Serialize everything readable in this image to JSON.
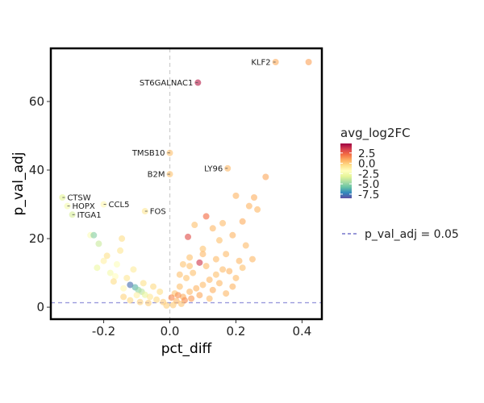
{
  "chart_data": {
    "type": "scatter",
    "xlabel": "pct_diff",
    "ylabel": "p_val_adj",
    "xlim": [
      -0.36,
      0.46
    ],
    "ylim": [
      -3.5,
      75.5
    ],
    "x_ticks": [
      -0.2,
      0.0,
      0.2,
      0.4
    ],
    "x_tick_labels": [
      "-0.2",
      "0.0",
      "0.2",
      "0.4"
    ],
    "y_ticks": [
      0,
      20,
      40,
      60
    ],
    "y_tick_labels": [
      "0",
      "20",
      "40",
      "60"
    ],
    "vline_x": 0,
    "hline_y": 1.3,
    "color_scale": {
      "title": "avg_log2FC",
      "range": [
        -8.5,
        4.8
      ],
      "ticks": [
        2.5,
        0.0,
        -2.5,
        -5.0,
        -7.5
      ],
      "tick_labels": [
        "2.5",
        "0.0",
        "-2.5",
        "-5.0",
        "-7.5"
      ],
      "stops": [
        "#5e4fa2",
        "#3288bd",
        "#66c2a5",
        "#abdda4",
        "#e6f598",
        "#ffffbf",
        "#fee08b",
        "#fdae61",
        "#f46d43",
        "#d53e4f",
        "#9e0142"
      ]
    },
    "threshold_legend": "p_val_adj = 0.05",
    "points": [
      {
        "x": 0.42,
        "y": 71.5,
        "fc": 1.0
      },
      {
        "x": 0.32,
        "y": 71.5,
        "fc": 0.8
      },
      {
        "x": 0.085,
        "y": 65.5,
        "fc": 4.2
      },
      {
        "x": 0.0,
        "y": 45.0,
        "fc": 0.3
      },
      {
        "x": 0.0,
        "y": 38.8,
        "fc": 0.2
      },
      {
        "x": 0.175,
        "y": 40.5,
        "fc": 0.5
      },
      {
        "x": 0.29,
        "y": 38.0,
        "fc": 0.9
      },
      {
        "x": -0.325,
        "y": 32.0,
        "fc": -3.2
      },
      {
        "x": -0.31,
        "y": 29.5,
        "fc": -2.5
      },
      {
        "x": -0.295,
        "y": 27.0,
        "fc": -3.5
      },
      {
        "x": -0.2,
        "y": 30.0,
        "fc": -1.5
      },
      {
        "x": -0.075,
        "y": 28.0,
        "fc": -0.8
      },
      {
        "x": -0.24,
        "y": 21.0,
        "fc": -2.0
      },
      {
        "x": -0.215,
        "y": 18.5,
        "fc": -3.8
      },
      {
        "x": -0.145,
        "y": 20.0,
        "fc": -0.5
      },
      {
        "x": -0.23,
        "y": 21.0,
        "fc": -5.2
      },
      {
        "x": 0.055,
        "y": 20.5,
        "fc": 3.0
      },
      {
        "x": 0.11,
        "y": 26.5,
        "fc": 2.2
      },
      {
        "x": 0.24,
        "y": 29.5,
        "fc": 0.6
      },
      {
        "x": 0.255,
        "y": 32.0,
        "fc": 0.7
      },
      {
        "x": 0.265,
        "y": 28.5,
        "fc": 0.5
      },
      {
        "x": 0.2,
        "y": 32.5,
        "fc": 0.6
      },
      {
        "x": 0.22,
        "y": 25.0,
        "fc": 0.8
      },
      {
        "x": 0.16,
        "y": 24.5,
        "fc": 0.4
      },
      {
        "x": 0.075,
        "y": 24.0,
        "fc": 0.3
      },
      {
        "x": 0.13,
        "y": 23.0,
        "fc": 0.5
      },
      {
        "x": 0.19,
        "y": 21.0,
        "fc": 0.6
      },
      {
        "x": 0.23,
        "y": 18.0,
        "fc": 0.4
      },
      {
        "x": 0.15,
        "y": 19.5,
        "fc": 0.3
      },
      {
        "x": 0.1,
        "y": 17.0,
        "fc": 0.2
      },
      {
        "x": 0.17,
        "y": 15.5,
        "fc": 0.4
      },
      {
        "x": 0.21,
        "y": 13.5,
        "fc": 0.5
      },
      {
        "x": 0.09,
        "y": 13.0,
        "fc": 3.6
      },
      {
        "x": 0.06,
        "y": 12.0,
        "fc": 0.3
      },
      {
        "x": -0.16,
        "y": 12.5,
        "fc": -2.0
      },
      {
        "x": -0.2,
        "y": 13.5,
        "fc": -1.2
      },
      {
        "x": -0.19,
        "y": 15.0,
        "fc": -0.6
      },
      {
        "x": -0.11,
        "y": 11.0,
        "fc": -1.0
      },
      {
        "x": -0.18,
        "y": 10.0,
        "fc": -2.5
      },
      {
        "x": -0.165,
        "y": 9.0,
        "fc": -1.8
      },
      {
        "x": -0.13,
        "y": 8.5,
        "fc": -0.8
      },
      {
        "x": -0.17,
        "y": 7.5,
        "fc": -0.5
      },
      {
        "x": -0.12,
        "y": 6.5,
        "fc": -7.8
      },
      {
        "x": -0.105,
        "y": 5.8,
        "fc": -6.2
      },
      {
        "x": -0.095,
        "y": 5.0,
        "fc": -5.0
      },
      {
        "x": -0.085,
        "y": 4.5,
        "fc": -4.2
      },
      {
        "x": -0.075,
        "y": 3.6,
        "fc": -3.0
      },
      {
        "x": -0.14,
        "y": 5.5,
        "fc": -1.5
      },
      {
        "x": -0.06,
        "y": 3.0,
        "fc": -0.8
      },
      {
        "x": -0.1,
        "y": 3.5,
        "fc": -1.2
      },
      {
        "x": -0.04,
        "y": 2.2,
        "fc": -0.4
      },
      {
        "x": -0.02,
        "y": 1.5,
        "fc": 0.0
      },
      {
        "x": 0.02,
        "y": 1.8,
        "fc": 0.5
      },
      {
        "x": 0.04,
        "y": 3.0,
        "fc": 0.8
      },
      {
        "x": 0.06,
        "y": 4.5,
        "fc": 0.5
      },
      {
        "x": 0.08,
        "y": 5.5,
        "fc": 0.6
      },
      {
        "x": 0.1,
        "y": 6.5,
        "fc": 0.4
      },
      {
        "x": 0.12,
        "y": 8.0,
        "fc": 0.5
      },
      {
        "x": 0.14,
        "y": 9.5,
        "fc": 0.3
      },
      {
        "x": 0.16,
        "y": 11.0,
        "fc": 0.4
      },
      {
        "x": 0.18,
        "y": 10.5,
        "fc": 0.6
      },
      {
        "x": 0.05,
        "y": 8.5,
        "fc": 0.2
      },
      {
        "x": 0.07,
        "y": 10.0,
        "fc": 0.3
      },
      {
        "x": 0.11,
        "y": 12.0,
        "fc": 0.4
      },
      {
        "x": 0.03,
        "y": 6.0,
        "fc": 0.3
      },
      {
        "x": 0.015,
        "y": 4.0,
        "fc": 0.2
      },
      {
        "x": 0.045,
        "y": 2.0,
        "fc": 1.5
      },
      {
        "x": 0.065,
        "y": 2.5,
        "fc": 1.2
      },
      {
        "x": 0.09,
        "y": 3.5,
        "fc": 0.9
      },
      {
        "x": 0.13,
        "y": 5.0,
        "fc": 0.7
      },
      {
        "x": 0.15,
        "y": 7.0,
        "fc": 0.5
      },
      {
        "x": 0.2,
        "y": 8.5,
        "fc": 0.4
      },
      {
        "x": 0.22,
        "y": 11.5,
        "fc": 0.3
      },
      {
        "x": 0.25,
        "y": 14.0,
        "fc": 0.5
      },
      {
        "x": 0.19,
        "y": 6.0,
        "fc": 0.6
      },
      {
        "x": 0.17,
        "y": 4.0,
        "fc": 0.5
      },
      {
        "x": 0.12,
        "y": 2.5,
        "fc": 0.4
      },
      {
        "x": 0.03,
        "y": 9.5,
        "fc": 0.3
      },
      {
        "x": -0.03,
        "y": 4.5,
        "fc": -0.5
      },
      {
        "x": -0.05,
        "y": 6.0,
        "fc": -0.4
      },
      {
        "x": -0.08,
        "y": 7.0,
        "fc": -0.6
      },
      {
        "x": -0.14,
        "y": 3.0,
        "fc": -0.2
      },
      {
        "x": -0.12,
        "y": 2.0,
        "fc": -0.3
      },
      {
        "x": -0.09,
        "y": 1.5,
        "fc": -0.2
      },
      {
        "x": -0.065,
        "y": 1.2,
        "fc": -0.1
      },
      {
        "x": 0.035,
        "y": 1.0,
        "fc": 0.2
      },
      {
        "x": 0.01,
        "y": 0.6,
        "fc": 0.1
      },
      {
        "x": -0.01,
        "y": 0.5,
        "fc": -0.1
      },
      {
        "x": 0.005,
        "y": 2.8,
        "fc": 1.6
      },
      {
        "x": 0.025,
        "y": 3.5,
        "fc": 1.4
      },
      {
        "x": 0.1,
        "y": 15.5,
        "fc": 0.5
      },
      {
        "x": 0.14,
        "y": 14.0,
        "fc": 0.4
      },
      {
        "x": 0.06,
        "y": 14.5,
        "fc": 0.3
      },
      {
        "x": 0.04,
        "y": 12.5,
        "fc": 0.2
      },
      {
        "x": -0.15,
        "y": 16.5,
        "fc": -0.8
      },
      {
        "x": -0.22,
        "y": 11.5,
        "fc": -2.8
      }
    ],
    "labels": [
      {
        "text": "KLF2",
        "x": 0.32,
        "y": 71.5,
        "anchor": "end"
      },
      {
        "text": "ST6GALNAC1",
        "x": 0.085,
        "y": 65.5,
        "anchor": "end"
      },
      {
        "text": "TMSB10",
        "x": 0.0,
        "y": 45.0,
        "anchor": "end"
      },
      {
        "text": "B2M",
        "x": 0.0,
        "y": 38.8,
        "anchor": "end"
      },
      {
        "text": "LY96",
        "x": 0.175,
        "y": 40.5,
        "anchor": "end"
      },
      {
        "text": "CTSW",
        "x": -0.325,
        "y": 32.0,
        "anchor": "start"
      },
      {
        "text": "CCL5",
        "x": -0.2,
        "y": 30.0,
        "anchor": "start"
      },
      {
        "text": "HOPX",
        "x": -0.31,
        "y": 29.5,
        "anchor": "start"
      },
      {
        "text": "FOS",
        "x": -0.075,
        "y": 28.0,
        "anchor": "start"
      },
      {
        "text": "ITGA1",
        "x": -0.295,
        "y": 27.0,
        "anchor": "start"
      }
    ]
  }
}
